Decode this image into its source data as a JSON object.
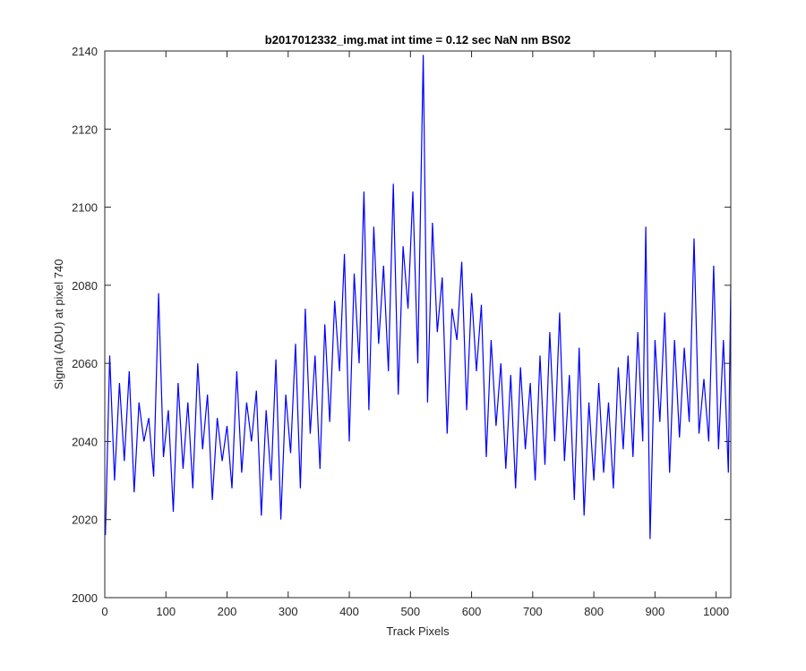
{
  "chart_data": {
    "type": "line",
    "title": "b2017012332_img.mat int time = 0.12 sec  NaN nm BS02",
    "xlabel": "Track Pixels",
    "ylabel": "Signal (ADU) at pixel 740",
    "xlim": [
      0,
      1024
    ],
    "ylim": [
      2000,
      2140
    ],
    "xticks": [
      0,
      100,
      200,
      300,
      400,
      500,
      600,
      700,
      800,
      900,
      1000
    ],
    "yticks": [
      2000,
      2020,
      2040,
      2060,
      2080,
      2100,
      2120,
      2140
    ],
    "grid": false,
    "line_color": "#0000ff",
    "series": [
      {
        "x": [
          1,
          8,
          16,
          24,
          32,
          40,
          48,
          56,
          64,
          72,
          80,
          88,
          96,
          104,
          112,
          120,
          128,
          136,
          144,
          152,
          160,
          168,
          176,
          184,
          192,
          200,
          208,
          216,
          224,
          232,
          240,
          248,
          256,
          264,
          272,
          280,
          288,
          296,
          304,
          312,
          320,
          328,
          336,
          344,
          352,
          360,
          368,
          376,
          384,
          392,
          400,
          408,
          416,
          424,
          432,
          440,
          448,
          456,
          464,
          472,
          480,
          488,
          496,
          504,
          512,
          521,
          528,
          536,
          544,
          552,
          560,
          568,
          576,
          584,
          592,
          600,
          608,
          616,
          624,
          632,
          640,
          648,
          656,
          664,
          672,
          680,
          688,
          696,
          704,
          712,
          720,
          728,
          736,
          744,
          752,
          760,
          768,
          776,
          784,
          792,
          800,
          808,
          816,
          824,
          832,
          840,
          848,
          856,
          864,
          872,
          880,
          885,
          892,
          900,
          908,
          916,
          924,
          932,
          940,
          948,
          956,
          964,
          972,
          980,
          988,
          996,
          1004,
          1012,
          1020,
          1024
        ],
        "y": [
          2016,
          2062,
          2030,
          2055,
          2035,
          2058,
          2027,
          2050,
          2040,
          2046,
          2031,
          2078,
          2036,
          2048,
          2022,
          2055,
          2033,
          2050,
          2028,
          2060,
          2038,
          2052,
          2025,
          2046,
          2035,
          2044,
          2028,
          2058,
          2032,
          2050,
          2040,
          2053,
          2021,
          2048,
          2030,
          2061,
          2020,
          2052,
          2037,
          2065,
          2028,
          2074,
          2042,
          2062,
          2033,
          2070,
          2045,
          2076,
          2058,
          2088,
          2040,
          2083,
          2060,
          2104,
          2048,
          2095,
          2065,
          2085,
          2058,
          2106,
          2052,
          2090,
          2074,
          2104,
          2060,
          2139,
          2050,
          2096,
          2068,
          2082,
          2042,
          2074,
          2066,
          2086,
          2048,
          2078,
          2058,
          2075,
          2036,
          2066,
          2044,
          2060,
          2033,
          2057,
          2028,
          2059,
          2038,
          2055,
          2030,
          2062,
          2034,
          2068,
          2040,
          2073,
          2035,
          2057,
          2025,
          2064,
          2021,
          2050,
          2030,
          2055,
          2032,
          2050,
          2028,
          2059,
          2038,
          2062,
          2036,
          2068,
          2040,
          2095,
          2015,
          2066,
          2045,
          2073,
          2032,
          2066,
          2041,
          2064,
          2045,
          2092,
          2042,
          2056,
          2040,
          2085,
          2038,
          2066,
          2032,
          2080
        ]
      }
    ]
  }
}
